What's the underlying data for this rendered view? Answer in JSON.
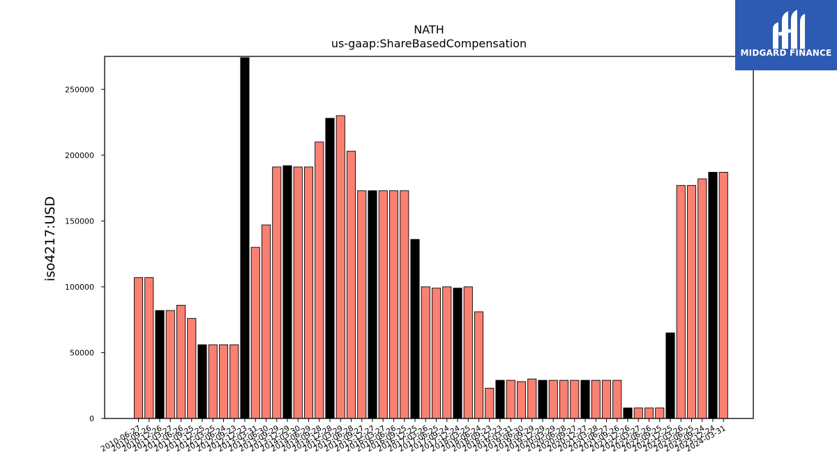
{
  "logo": {
    "text": "MIDGARD FINANCE",
    "icon": "midgard-logo-icon",
    "background": "#2d5bb3"
  },
  "colors": {
    "bar_default": "#fa8072",
    "bar_highlight": "#000000",
    "edge": "#000000"
  },
  "chart_data": {
    "type": "bar",
    "title": "NATH",
    "subtitle": "us-gaap:ShareBasedCompensation",
    "ylabel": "iso4217:USD",
    "xlabel": "",
    "ylim": [
      0,
      275000
    ],
    "yticks": [
      0,
      50000,
      100000,
      150000,
      200000,
      250000
    ],
    "grid": false,
    "categories": [
      "2010-06-27",
      "2010-09-26",
      "2010-12-26",
      "2011-03-27",
      "2011-06-26",
      "2011-09-25",
      "2011-12-25",
      "2012-03-25",
      "2012-06-24",
      "2012-09-23",
      "2012-12-23",
      "2013-03-31",
      "2013-06-30",
      "2013-09-29",
      "2013-12-29",
      "2014-03-30",
      "2014-06-29",
      "2014-09-28",
      "2014-12-28",
      "2015-03-29",
      "2015-06-28",
      "2015-09-27",
      "2015-12-27",
      "2016-03-27",
      "2016-06-26",
      "2016-09-25",
      "2016-12-25",
      "2017-03-26",
      "2017-06-25",
      "2017-09-24",
      "2017-12-24",
      "2018-03-25",
      "2018-06-24",
      "2018-09-23",
      "2018-12-23",
      "2019-03-31",
      "2019-06-30",
      "2019-09-29",
      "2019-12-29",
      "2020-03-29",
      "2020-06-28",
      "2020-09-27",
      "2020-12-27",
      "2021-03-28",
      "2021-06-27",
      "2021-09-26",
      "2021-12-26",
      "2022-03-27",
      "2022-06-26",
      "2022-09-25",
      "2022-12-25",
      "2023-03-26",
      "2023-06-25",
      "2023-09-24",
      "2023-12-24",
      "2024-03-31"
    ],
    "values": [
      107000,
      107000,
      82000,
      82000,
      86000,
      76000,
      56000,
      56000,
      56000,
      56000,
      274000,
      130000,
      147000,
      191000,
      192000,
      191000,
      191000,
      210000,
      228000,
      230000,
      203000,
      173000,
      173000,
      173000,
      173000,
      173000,
      136000,
      100000,
      99000,
      100000,
      99000,
      100000,
      81000,
      23000,
      29000,
      29000,
      28000,
      30000,
      29000,
      29000,
      29000,
      29000,
      29000,
      29000,
      29000,
      29000,
      8000,
      8000,
      8000,
      8000,
      65000,
      177000,
      177000,
      182000,
      187000,
      187000
    ],
    "highlighted": [
      false,
      false,
      true,
      false,
      false,
      false,
      true,
      false,
      false,
      false,
      true,
      false,
      false,
      false,
      true,
      false,
      false,
      false,
      true,
      false,
      false,
      false,
      true,
      false,
      false,
      false,
      true,
      false,
      false,
      false,
      true,
      false,
      false,
      false,
      true,
      false,
      false,
      false,
      true,
      false,
      false,
      false,
      true,
      false,
      false,
      false,
      true,
      false,
      false,
      false,
      true,
      false,
      false,
      false,
      true,
      false
    ]
  }
}
